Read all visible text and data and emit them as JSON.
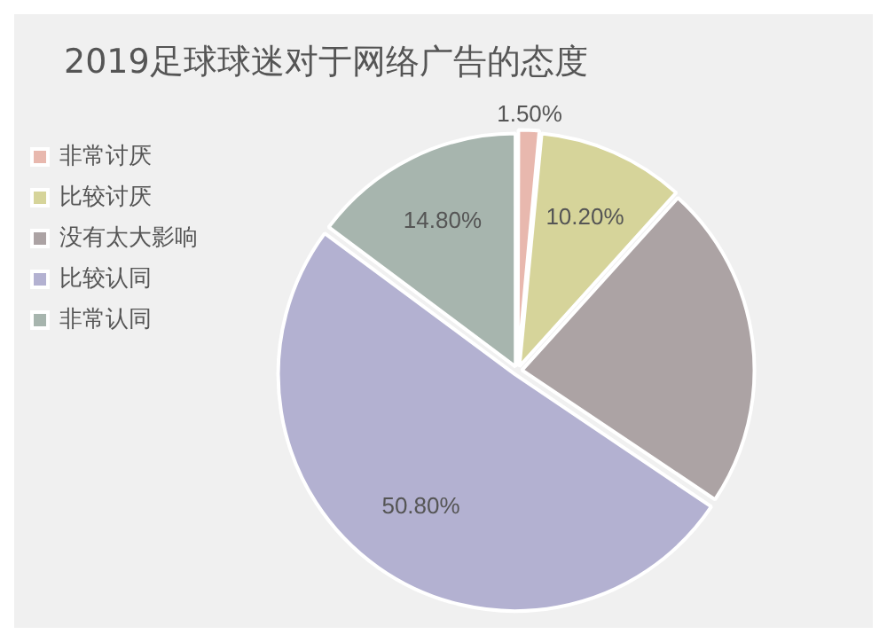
{
  "chart_data": {
    "type": "pie",
    "title": "2019足球球迷对于网络广告的态度",
    "categories": [
      "非常讨厌",
      "比较讨厌",
      "没有太大影响",
      "比较认同",
      "非常认同"
    ],
    "values": [
      1.5,
      10.2,
      22.7,
      50.8,
      14.8
    ],
    "colors": [
      "#e8b8ae",
      "#d6d49a",
      "#aca3a4",
      "#b3b1d1",
      "#a7b5ae"
    ],
    "value_labels": [
      "1.50%",
      "10.20%",
      null,
      "50.80%",
      "14.80%"
    ],
    "legend": "left"
  }
}
